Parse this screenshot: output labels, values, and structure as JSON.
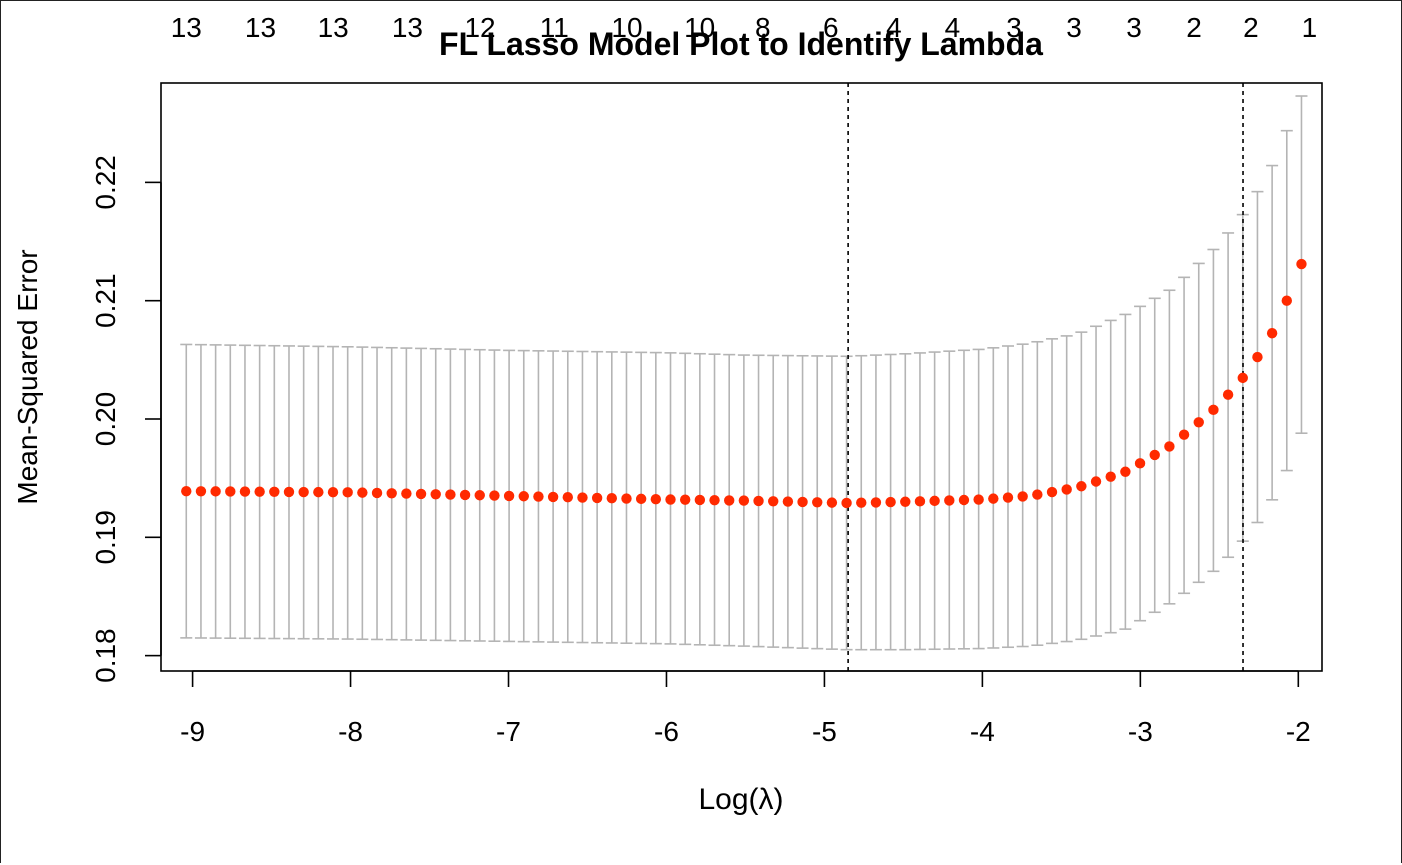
{
  "chart_data": {
    "type": "scatter",
    "title": "FL Lasso Model Plot to Identify Lambda",
    "xlabel": "Log(λ)",
    "ylabel": "Mean-Squared Error",
    "xlim": [
      -9.2,
      -1.85
    ],
    "ylim": [
      0.1787,
      0.2284
    ],
    "x_ticks": [
      -9,
      -8,
      -7,
      -6,
      -5,
      -4,
      -3,
      -2
    ],
    "y_ticks": [
      0.18,
      0.19,
      0.2,
      0.21,
      0.22
    ],
    "y_tick_labels": [
      "0.18",
      "0.19",
      "0.20",
      "0.21",
      "0.22"
    ],
    "top_axis": {
      "x": [
        -9.04,
        -8.57,
        -8.11,
        -7.64,
        -7.18,
        -6.71,
        -6.25,
        -5.79,
        -5.39,
        -4.96,
        -4.56,
        -4.19,
        -3.8,
        -3.42,
        -3.04,
        -2.66,
        -2.3,
        -1.93
      ],
      "labels": [
        "13",
        "13",
        "13",
        "13",
        "12",
        "11",
        "10",
        "10",
        "8",
        "6",
        "4",
        "4",
        "3",
        "3",
        "3",
        "2",
        "2",
        "1"
      ]
    },
    "vlines": [
      -4.85,
      -2.35
    ],
    "n_points": 77,
    "x_start": -9.04,
    "x_end": -1.98,
    "points_color": "#ff2a00",
    "errorbar_color": "#b4b4b4",
    "series": [
      {
        "name": "",
        "knots": [
          {
            "x": -9.04,
            "y": 0.1939,
            "lo": 0.1815,
            "hi": 0.2063
          },
          {
            "x": -8.0,
            "y": 0.1938,
            "lo": 0.1814,
            "hi": 0.2061
          },
          {
            "x": -7.0,
            "y": 0.1935,
            "lo": 0.1812,
            "hi": 0.2058
          },
          {
            "x": -6.0,
            "y": 0.1932,
            "lo": 0.181,
            "hi": 0.2056
          },
          {
            "x": -5.5,
            "y": 0.1931,
            "lo": 0.1808,
            "hi": 0.2054
          },
          {
            "x": -4.85,
            "y": 0.1929,
            "lo": 0.1805,
            "hi": 0.2053
          },
          {
            "x": -4.5,
            "y": 0.193,
            "lo": 0.1805,
            "hi": 0.2055
          },
          {
            "x": -4.0,
            "y": 0.1932,
            "lo": 0.1806,
            "hi": 0.2059
          },
          {
            "x": -3.7,
            "y": 0.1935,
            "lo": 0.1808,
            "hi": 0.2064
          },
          {
            "x": -3.4,
            "y": 0.1942,
            "lo": 0.1813,
            "hi": 0.2072
          },
          {
            "x": -3.1,
            "y": 0.1955,
            "lo": 0.1822,
            "hi": 0.2088
          },
          {
            "x": -2.8,
            "y": 0.1978,
            "lo": 0.1845,
            "hi": 0.211
          },
          {
            "x": -2.5,
            "y": 0.2012,
            "lo": 0.1875,
            "hi": 0.2148
          },
          {
            "x": -2.35,
            "y": 0.2035,
            "lo": 0.1897,
            "hi": 0.2173
          },
          {
            "x": -2.25,
            "y": 0.2054,
            "lo": 0.1914,
            "hi": 0.2194
          },
          {
            "x": -2.15,
            "y": 0.2076,
            "lo": 0.1935,
            "hi": 0.2218
          },
          {
            "x": -2.06,
            "y": 0.2104,
            "lo": 0.196,
            "hi": 0.2248
          },
          {
            "x": -1.98,
            "y": 0.2131,
            "lo": 0.1988,
            "hi": 0.2273
          }
        ]
      }
    ]
  }
}
